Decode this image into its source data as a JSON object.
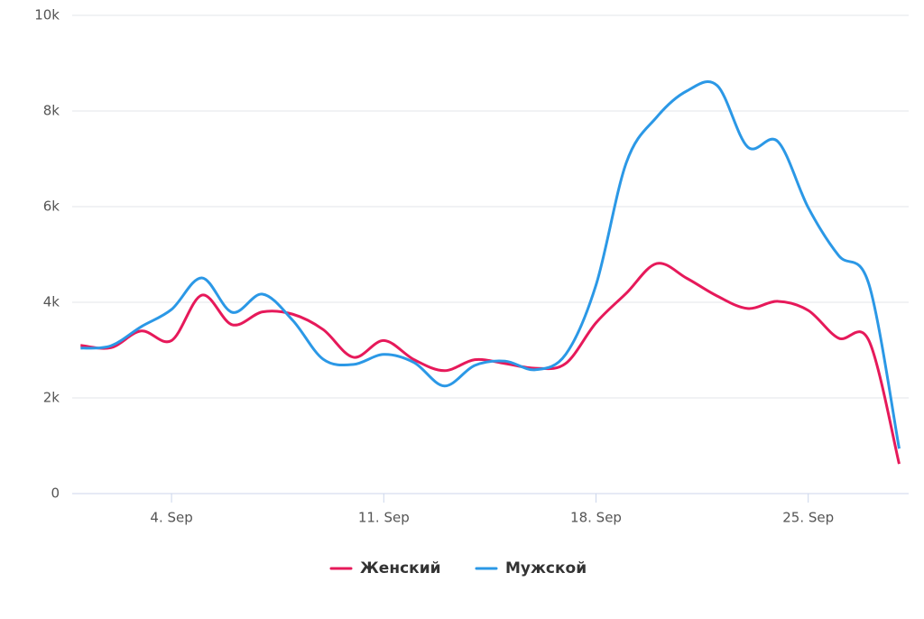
{
  "chart_data": {
    "type": "line",
    "categories": [
      null,
      null,
      null,
      "4. Sep",
      null,
      null,
      null,
      null,
      null,
      null,
      "11. Sep",
      null,
      null,
      null,
      null,
      null,
      null,
      "18. Sep",
      null,
      null,
      null,
      null,
      null,
      null,
      "25. Sep",
      null,
      null,
      null
    ],
    "series": [
      {
        "name": "Женский",
        "color": "#e6195a",
        "values": [
          3100,
          3050,
          3400,
          3200,
          4150,
          3530,
          3800,
          3750,
          3430,
          2850,
          3200,
          2800,
          2570,
          2800,
          2720,
          2620,
          2720,
          3570,
          4190,
          4810,
          4500,
          4130,
          3870,
          4020,
          3830,
          3250,
          3200,
          620
        ]
      },
      {
        "name": "Мужской",
        "color": "#2b98e6",
        "values": [
          3040,
          3090,
          3490,
          3850,
          4510,
          3790,
          4170,
          3620,
          2810,
          2700,
          2910,
          2740,
          2250,
          2680,
          2770,
          2590,
          2910,
          4360,
          6920,
          7870,
          8420,
          8530,
          7250,
          7360,
          5980,
          4980,
          4380,
          940
        ]
      }
    ],
    "ylim": [
      0,
      10000
    ],
    "yticks": [
      0,
      {
        "value": 2000,
        "label": "2k"
      },
      {
        "value": 4000,
        "label": "4k"
      },
      {
        "value": 6000,
        "label": "6k"
      },
      {
        "value": 8000,
        "label": "8k"
      },
      {
        "value": 10000,
        "label": "10k"
      }
    ],
    "grid": true
  }
}
